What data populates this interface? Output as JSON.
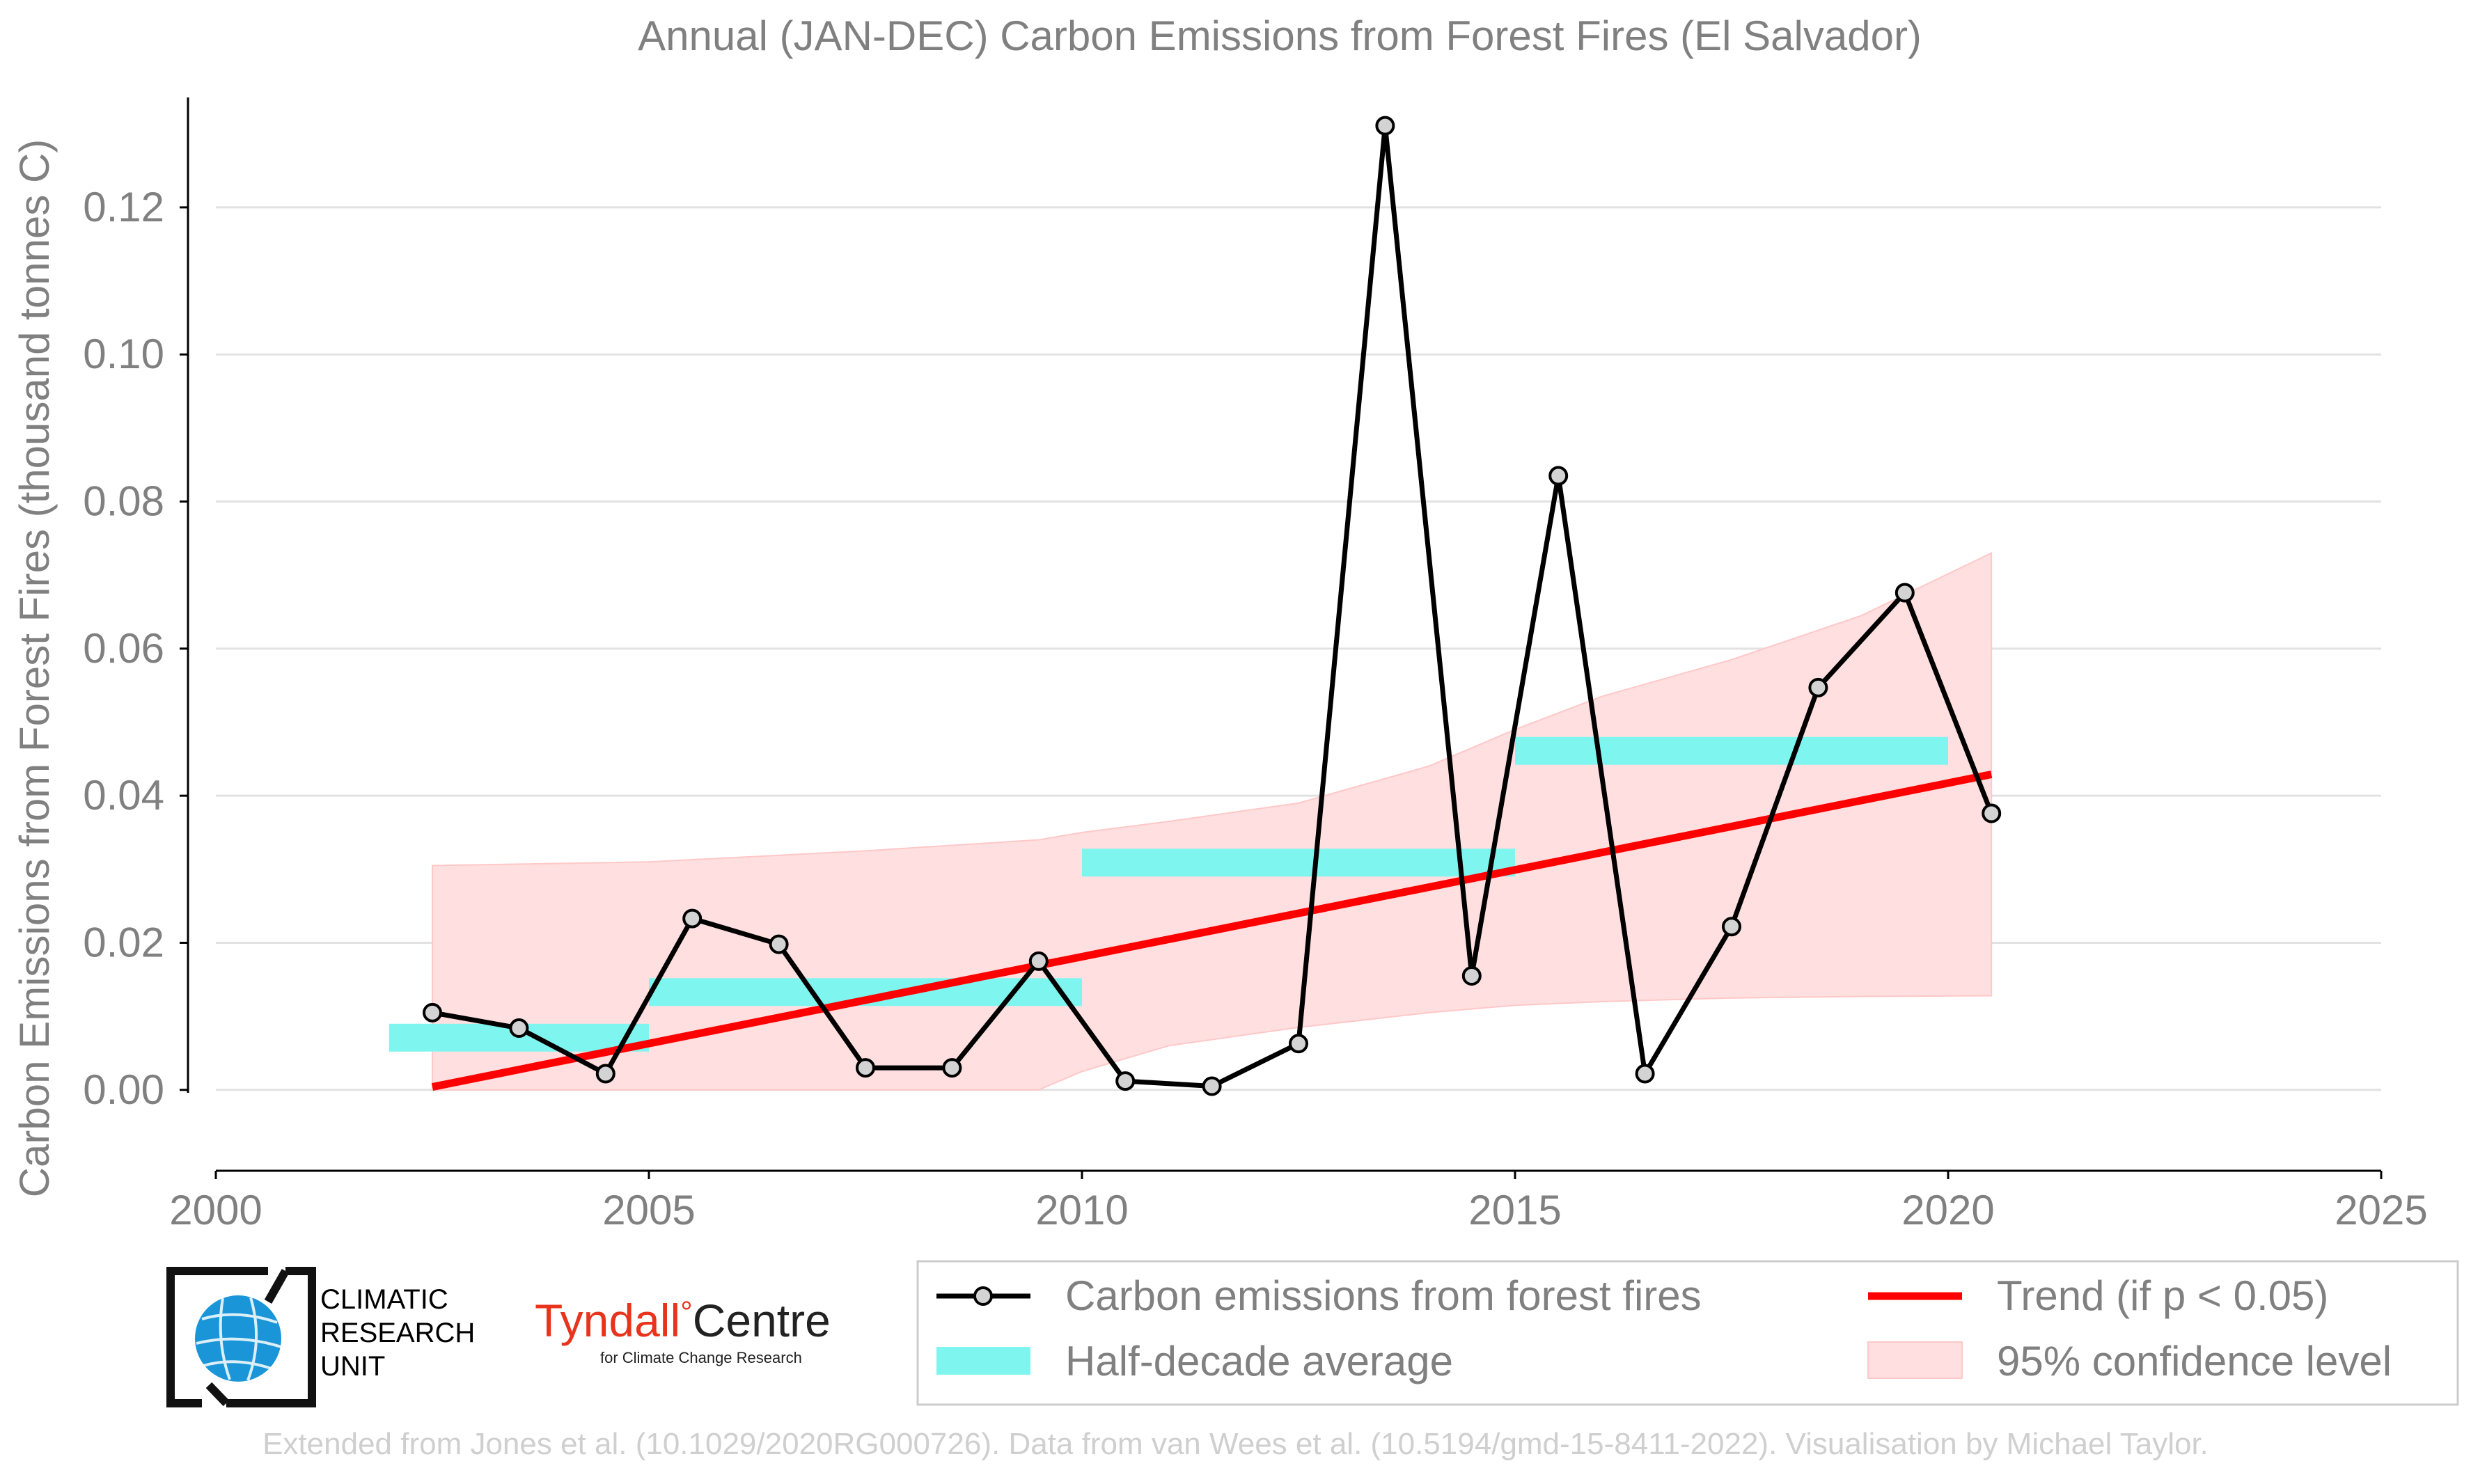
{
  "chart_data": {
    "type": "line",
    "title": "Annual (JAN-DEC) Carbon Emissions from Forest Fires (El Salvador)",
    "ylabel": "Carbon Emissions from Forest Fires (thousand tonnes C)",
    "xlabel": "",
    "xlim": [
      2000,
      2025
    ],
    "ylim": [
      -0.011,
      0.134
    ],
    "x_ticks": [
      2000,
      2005,
      2010,
      2015,
      2020,
      2025
    ],
    "y_ticks": [
      0.0,
      0.02,
      0.04,
      0.06,
      0.08,
      0.1,
      0.12
    ],
    "y_tick_labels": [
      "0.00",
      "0.02",
      "0.04",
      "0.06",
      "0.08",
      "0.10",
      "0.12"
    ],
    "grid": "horizontal",
    "series": [
      {
        "name": "Carbon emissions from forest fires",
        "color": "#000000",
        "marker_fill": "#d3d3d3",
        "x": [
          2002.5,
          2003.5,
          2004.5,
          2005.5,
          2006.5,
          2007.5,
          2008.5,
          2009.5,
          2010.5,
          2011.5,
          2012.5,
          2013.5,
          2014.5,
          2015.5,
          2016.5,
          2017.5,
          2018.5,
          2019.5,
          2020.5
        ],
        "values": [
          0.0105,
          0.0084,
          0.0022,
          0.0233,
          0.0198,
          0.003,
          0.003,
          0.0175,
          0.0012,
          0.0005,
          0.0063,
          0.1311,
          0.0155,
          0.0835,
          0.0022,
          0.0222,
          0.0547,
          0.0676,
          0.0376
        ]
      }
    ],
    "half_decade_average": {
      "name": "Half-decade average",
      "color": "#7ff5f0",
      "segments": [
        {
          "x0": 2002,
          "x1": 2005,
          "value": 0.0071
        },
        {
          "x0": 2005,
          "x1": 2010,
          "value": 0.0133
        },
        {
          "x0": 2010,
          "x1": 2015,
          "value": 0.0309
        },
        {
          "x0": 2015,
          "x1": 2020,
          "value": 0.0461
        }
      ]
    },
    "trend": {
      "name": "Trend (if p < 0.05)",
      "color": "#ff0000",
      "x": [
        2002.5,
        2020.5
      ],
      "values": [
        0.0004,
        0.0429
      ]
    },
    "confidence_band": {
      "name": "95% confidence level",
      "color": "#ffdfdf",
      "x": [
        2002.5,
        2005,
        2007.5,
        2009.5,
        2010,
        2011,
        2012.5,
        2014,
        2015,
        2016,
        2017.5,
        2019,
        2020.5
      ],
      "upper": [
        0.0305,
        0.031,
        0.0325,
        0.034,
        0.035,
        0.0365,
        0.039,
        0.044,
        0.049,
        0.0535,
        0.0585,
        0.0645,
        0.073
      ],
      "lower": [
        0.0,
        0.0,
        0.0,
        0.0,
        0.0025,
        0.006,
        0.0085,
        0.0105,
        0.0115,
        0.012,
        0.0125,
        0.0127,
        0.0128
      ]
    },
    "legend": {
      "placement": "bottom-right",
      "entries": [
        {
          "label": "Carbon emissions from forest fires",
          "kind": "line-marker",
          "color": "#000000"
        },
        {
          "label": "Trend (if p < 0.05)",
          "kind": "line",
          "color": "#ff0000"
        },
        {
          "label": "Half-decade average",
          "kind": "patch",
          "color": "#7ff5f0"
        },
        {
          "label": "95% confidence level",
          "kind": "patch",
          "color": "#ffdfdf"
        }
      ]
    }
  },
  "logos": {
    "cru": {
      "lines": [
        "CLIMATIC",
        "RESEARCH",
        "UNIT"
      ]
    },
    "tyndall": {
      "name_part1": "Tyndall",
      "degree": "°",
      "name_part2": "Centre",
      "subtitle": "for Climate Change Research",
      "color": "#e8341c"
    }
  },
  "credit": "Extended from Jones et al. (10.1029/2020RG000726). Data from van Wees et al. (10.5194/gmd-15-8411-2022). Visualisation by Michael Taylor.",
  "colors": {
    "text": "#808080",
    "axis": "#000000",
    "grid": "#e2e2e2",
    "credit": "#cfcfcf",
    "cru_blue": "#1a96d8"
  }
}
